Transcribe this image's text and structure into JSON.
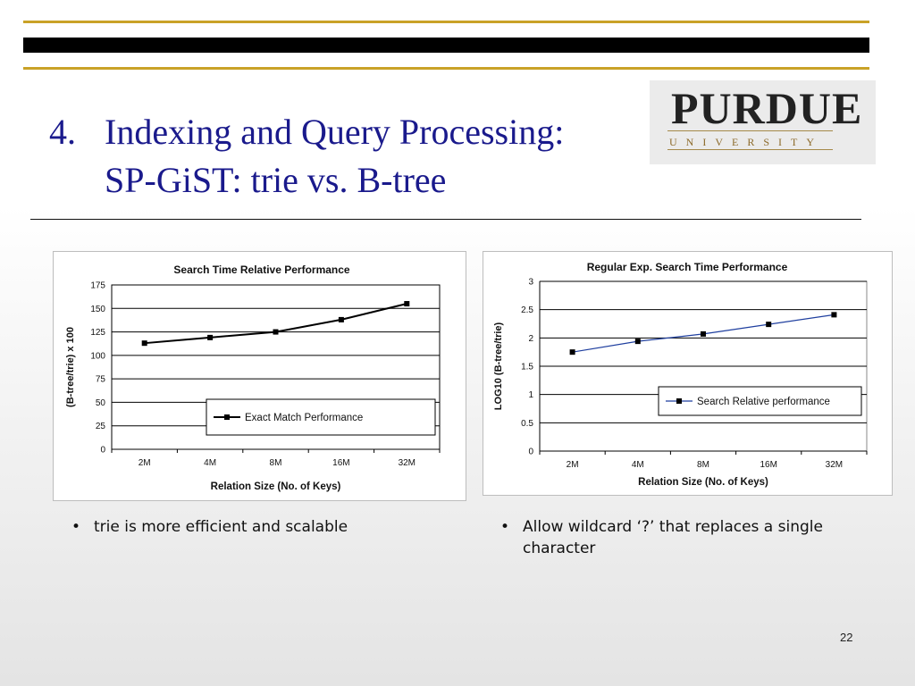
{
  "slide": {
    "title_number": "4.",
    "title_line1": "Indexing and Query Processing:",
    "title_line2": "SP-GiST: trie vs. B-tree",
    "page_number": "22"
  },
  "logo": {
    "wordmark": "PURDUE",
    "subtitle": "UNIVERSITY"
  },
  "bullets": {
    "left": "trie is more efficient and scalable",
    "right": "Allow wildcard ‘?’ that replaces a single character",
    "marker": "•"
  },
  "colors": {
    "title": "#1a1a8c",
    "gold_rule": "#c9a227",
    "line_series_1": "#000000",
    "line_series_2": "#1f3f9f"
  },
  "chart_data": [
    {
      "type": "line",
      "title": "Search Time Relative Performance",
      "xlabel": "Relation Size (No. of Keys)",
      "ylabel": "(B-tree/trie) x 100",
      "categories": [
        "2M",
        "4M",
        "8M",
        "16M",
        "32M"
      ],
      "ylim": [
        0,
        175
      ],
      "yticks": [
        "0",
        "25",
        "50",
        "75",
        "100",
        "125",
        "150",
        "175"
      ],
      "grid": true,
      "legend_position": "bottom-right",
      "series": [
        {
          "name": "Exact Match Performance",
          "values": [
            113,
            119,
            125,
            138,
            155
          ]
        }
      ]
    },
    {
      "type": "line",
      "title": "Regular Exp. Search Time Performance",
      "xlabel": "Relation Size (No. of Keys)",
      "ylabel": "LOG10 (B-tree/trie)",
      "categories": [
        "2M",
        "4M",
        "8M",
        "16M",
        "32M"
      ],
      "ylim": [
        0,
        3
      ],
      "yticks": [
        "0",
        "0.5",
        "1",
        "1.5",
        "2",
        "2.5",
        "3"
      ],
      "grid": true,
      "legend_position": "center-right",
      "series": [
        {
          "name": "Search Relative performance",
          "values": [
            1.75,
            1.94,
            2.07,
            2.24,
            2.41
          ]
        }
      ]
    }
  ]
}
